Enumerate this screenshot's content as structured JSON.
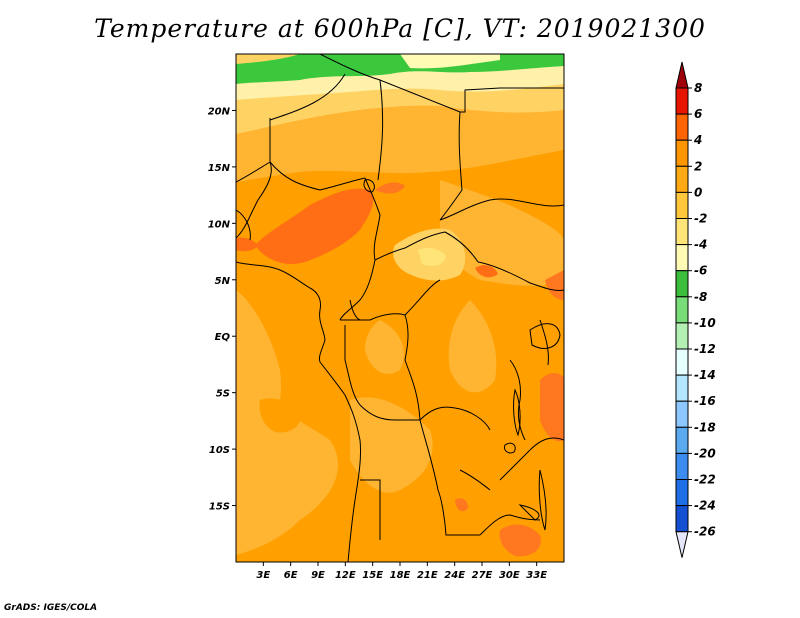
{
  "title": "Temperature at 600hPa [C], VT: 2019021300",
  "credit": "GrADS: IGES/COLA",
  "map": {
    "lon_range": [
      0,
      36
    ],
    "lat_range": [
      -20,
      25
    ],
    "lat_ticks": [
      {
        "value": 20,
        "label": "20N"
      },
      {
        "value": 15,
        "label": "15N"
      },
      {
        "value": 10,
        "label": "10N"
      },
      {
        "value": 5,
        "label": "5N"
      },
      {
        "value": 0,
        "label": "EQ"
      },
      {
        "value": -5,
        "label": "5S"
      },
      {
        "value": -10,
        "label": "10S"
      },
      {
        "value": -15,
        "label": "15S"
      }
    ],
    "lon_ticks": [
      {
        "value": 3,
        "label": "3E"
      },
      {
        "value": 6,
        "label": "6E"
      },
      {
        "value": 9,
        "label": "9E"
      },
      {
        "value": 12,
        "label": "12E"
      },
      {
        "value": 15,
        "label": "15E"
      },
      {
        "value": 18,
        "label": "18E"
      },
      {
        "value": 21,
        "label": "21E"
      },
      {
        "value": 24,
        "label": "24E"
      },
      {
        "value": 27,
        "label": "27E"
      },
      {
        "value": 30,
        "label": "30E"
      },
      {
        "value": 33,
        "label": "33E"
      }
    ]
  },
  "colorbar": {
    "labels": [
      "8",
      "6",
      "4",
      "2",
      "0",
      "-2",
      "-4",
      "-6",
      "-8",
      "-10",
      "-12",
      "-14",
      "-16",
      "-18",
      "-20",
      "-22",
      "-24",
      "-26"
    ],
    "colors": [
      "#a0000a",
      "#e61400",
      "#ff6400",
      "#ff9600",
      "#ffaa14",
      "#ffc83c",
      "#ffe478",
      "#fffab4",
      "#3cbe3c",
      "#78dc78",
      "#b4f0b4",
      "#e6ffff",
      "#b4e6ff",
      "#8cc8ff",
      "#5aaaf0",
      "#3c8cf0",
      "#1e6ee6",
      "#1450d2",
      "#0a32be",
      "#0a1e96",
      "#0a0a64",
      "#e6e6fa"
    ]
  }
}
